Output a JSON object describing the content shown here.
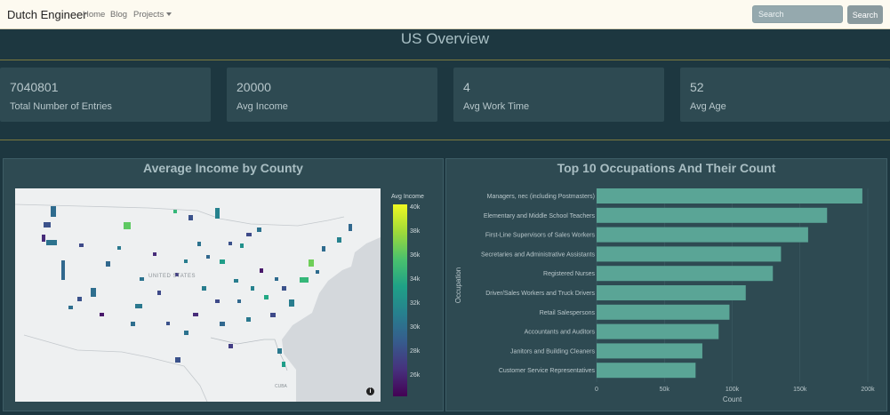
{
  "navbar": {
    "brand": "Dutch Engineer",
    "links": [
      "Home",
      "Blog",
      "Projects"
    ],
    "search_placeholder": "Search",
    "search_button": "Search"
  },
  "page_title": "US Overview",
  "stats": [
    {
      "value": "7040801",
      "label": "Total Number of Entries"
    },
    {
      "value": "20000",
      "label": "Avg Income"
    },
    {
      "value": "4",
      "label": "Avg Work Time"
    },
    {
      "value": "52",
      "label": "Avg Age"
    }
  ],
  "map_panel": {
    "title": "Average Income by County",
    "country_label": "UNITED STATES",
    "cuba_label": "CUBA",
    "legend_title": "Avg Income",
    "colorbar_ticks": [
      "40k",
      "38k",
      "36k",
      "34k",
      "32k",
      "30k",
      "28k",
      "26k"
    ],
    "colors": {
      "land": "#eef0f1",
      "water": "#d4d8dc",
      "low": "#440154",
      "high": "#f0f921"
    }
  },
  "chart_data": {
    "type": "bar",
    "orientation": "horizontal",
    "title": "Top 10 Occupations And Their Count",
    "xlabel": "Count",
    "ylabel": "Occupation",
    "xlim": [
      0,
      200000
    ],
    "xticks": [
      0,
      50000,
      100000,
      150000,
      200000
    ],
    "xtick_labels": [
      "0",
      "50k",
      "100k",
      "150k",
      "200k"
    ],
    "bar_color": "#5aa596",
    "categories": [
      "Managers, nec (including Postmasters)",
      "Elementary and Middle School Teachers",
      "First-Line Supervisors of Sales Workers",
      "Secretaries and Administrative Assistants",
      "Registered Nurses",
      "Driver/Sales Workers and Truck Drivers",
      "Retail Salespersons",
      "Accountants and Auditors",
      "Janitors and Building Cleaners",
      "Customer Service Representatives"
    ],
    "values": [
      196000,
      170000,
      156000,
      136000,
      130000,
      110000,
      98000,
      90000,
      78000,
      73000
    ]
  }
}
